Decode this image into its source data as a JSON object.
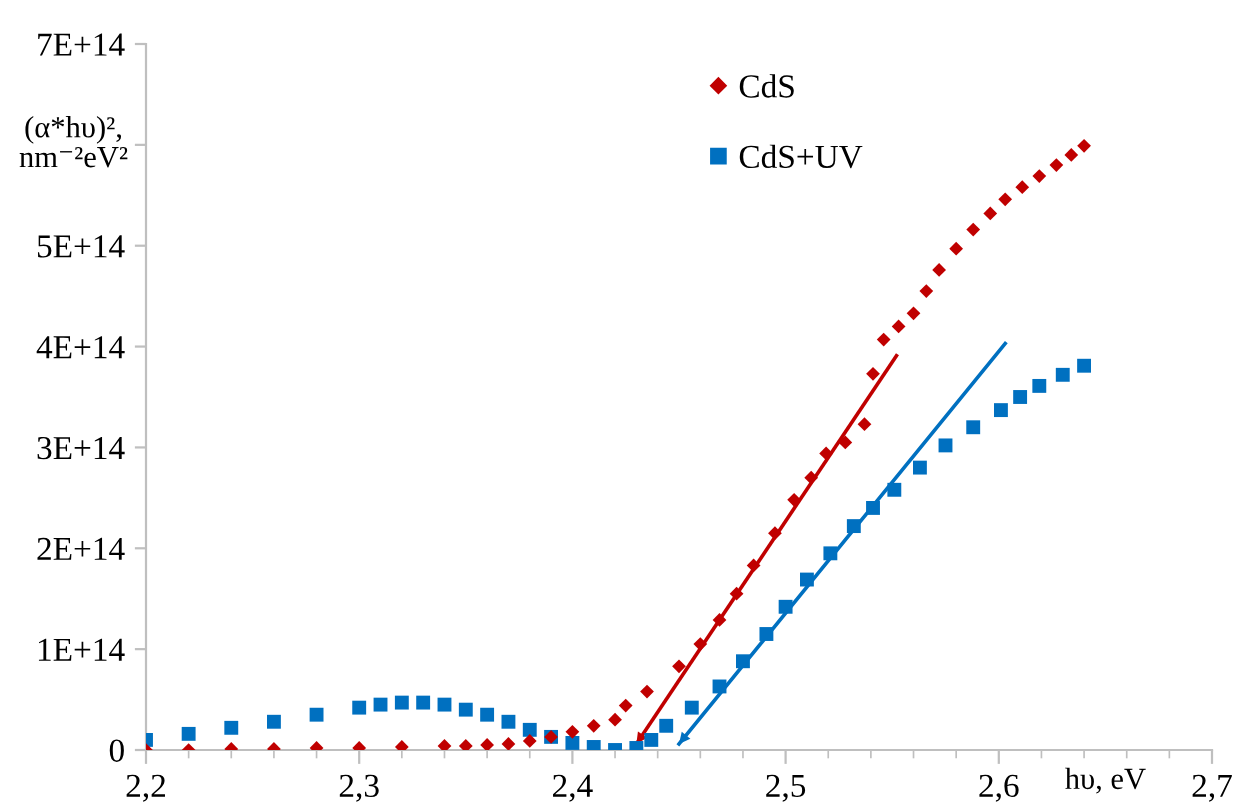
{
  "chart_data": {
    "type": "scatter",
    "xlabel": "hυ, eV",
    "ylabel": "(α*hυ)²,\nnm⁻²eV²",
    "xlim": [
      2.2,
      2.7
    ],
    "xticks": [
      {
        "value": 2.2,
        "label": "2,2"
      },
      {
        "value": 2.3,
        "label": "2,3"
      },
      {
        "value": 2.4,
        "label": "2,4"
      },
      {
        "value": 2.5,
        "label": "2,5"
      },
      {
        "value": 2.6,
        "label": "2,6"
      },
      {
        "value": 2.7,
        "label": "2,7"
      }
    ],
    "ylim": [
      0,
      700000000000000.0
    ],
    "yticks": [
      0,
      {
        "value": 100000000000000.0,
        "label": "1E+14"
      },
      {
        "value": 200000000000000.0,
        "label": "2E+14"
      },
      {
        "value": 300000000000000.0,
        "label": "3E+14"
      },
      {
        "value": 400000000000000.0,
        "label": "4E+14"
      },
      {
        "value": 500000000000000.0,
        "label": "5E+14"
      },
      {
        "value": 600000000000000.0,
        "label": null
      },
      {
        "value": 700000000000000.0,
        "label": "7E+14"
      }
    ],
    "grid": false,
    "legend": "top",
    "series": [
      {
        "name": "CdS",
        "color": "#c00000",
        "marker": "diamond",
        "x": [
          2.2,
          2.22,
          2.24,
          2.26,
          2.28,
          2.3,
          2.32,
          2.34,
          2.35,
          2.36,
          2.37,
          2.38,
          2.39,
          2.4,
          2.41,
          2.42,
          2.425,
          2.435,
          2.45,
          2.46,
          2.469,
          2.477,
          2.485,
          2.495,
          2.504,
          2.512,
          2.519,
          2.528,
          2.537,
          2.541,
          2.546,
          2.553,
          2.56,
          2.566,
          2.572,
          2.58,
          2.588,
          2.596,
          2.603,
          2.611,
          2.619,
          2.627,
          2.634,
          2.64
        ],
        "values": [
          0.0,
          0.0,
          1000000000000.0,
          1000000000000.0,
          2000000000000.0,
          2000000000000.0,
          3000000000000.0,
          4000000000000.0,
          4000000000000.0,
          5000000000000.0,
          6000000000000.0,
          9000000000000.0,
          13000000000000.0,
          18000000000000.0,
          24000000000000.0,
          30000000000000.0,
          44000000000000.0,
          58000000000000.0,
          83000000000000.0,
          105000000000000.0,
          129000000000000.0,
          155000000000000.0,
          183000000000000.0,
          215000000000000.0,
          248000000000000.0,
          270000000000000.0,
          294000000000000.0,
          305000000000000.0,
          323000000000000.0,
          373000000000000.0,
          407000000000000.0,
          420000000000000.0,
          433000000000000.0,
          455000000000000.0,
          476000000000000.0,
          497000000000000.0,
          516000000000000.0,
          532000000000000.0,
          546000000000000.0,
          558000000000000.0,
          569000000000000.0,
          580000000000000.0,
          590000000000000.0,
          599000000000000.0
        ]
      },
      {
        "name": "CdS+UV",
        "color": "#0070c0",
        "marker": "square",
        "x": [
          2.2,
          2.22,
          2.24,
          2.26,
          2.28,
          2.3,
          2.31,
          2.32,
          2.33,
          2.34,
          2.35,
          2.36,
          2.37,
          2.38,
          2.39,
          2.4,
          2.41,
          2.42,
          2.43,
          2.437,
          2.444,
          2.456,
          2.469,
          2.48,
          2.491,
          2.5,
          2.51,
          2.521,
          2.532,
          2.541,
          2.551,
          2.563,
          2.575,
          2.588,
          2.601,
          2.61,
          2.619,
          2.63,
          2.64
        ],
        "values": [
          10000000000000.0,
          16000000000000.0,
          22000000000000.0,
          28000000000000.0,
          35000000000000.0,
          42000000000000.0,
          45000000000000.0,
          47000000000000.0,
          47000000000000.0,
          45000000000000.0,
          40000000000000.0,
          35000000000000.0,
          28000000000000.0,
          20000000000000.0,
          13000000000000.0,
          7000000000000.0,
          3000000000000.0,
          0.0,
          2000000000000.0,
          10000000000000.0,
          24000000000000.0,
          42000000000000.0,
          63000000000000.0,
          88000000000000.0,
          115000000000000.0,
          142000000000000.0,
          169000000000000.0,
          195000000000000.0,
          222000000000000.0,
          240000000000000.0,
          258000000000000.0,
          280000000000000.0,
          302000000000000.0,
          320000000000000.0,
          337000000000000.0,
          350000000000000.0,
          361000000000000.0,
          372000000000000.0,
          381000000000000.0
        ]
      },
      {
        "type": "line",
        "color": "#c00000",
        "x": [
          2.43,
          2.552
        ],
        "values": [
          6000000000000.0,
          391000000000000.0
        ]
      },
      {
        "type": "line",
        "color": "#0070c0",
        "x": [
          2.45,
          2.603
        ],
        "values": [
          6000000000000.0,
          403000000000000.0
        ]
      }
    ]
  }
}
